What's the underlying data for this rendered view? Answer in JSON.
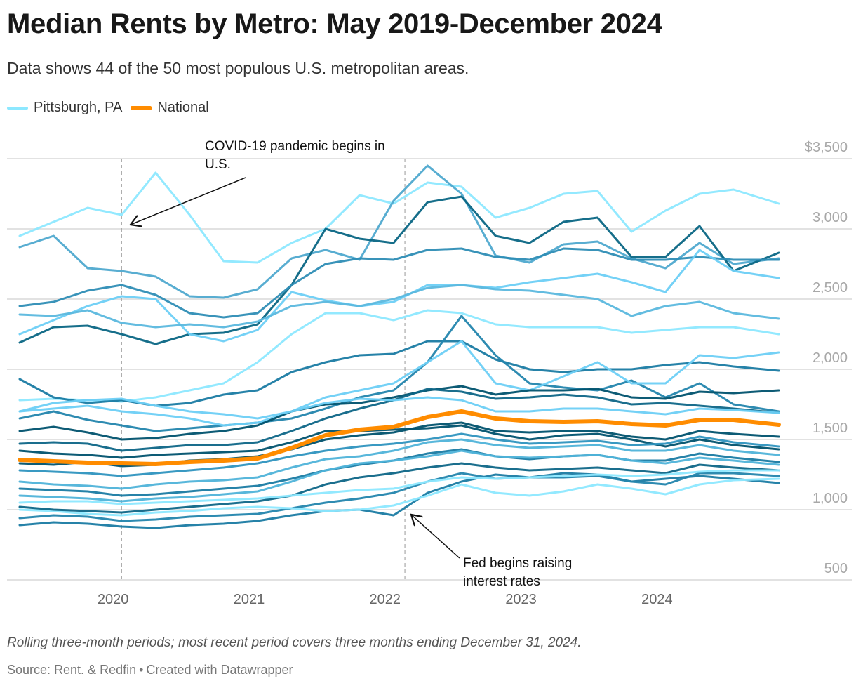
{
  "header": {
    "title": "Median Rents by Metro: May 2019-December 2024",
    "subtitle": "Data shows 44 of the 50 most populous U.S. metropolitan areas."
  },
  "legend": [
    {
      "label": "Pittsburgh, PA",
      "color": "#8de8ff"
    },
    {
      "label": "National",
      "color": "#ff8c00"
    }
  ],
  "footer": {
    "note": "Rolling three-month periods; most recent period covers three months ending December 31, 2024.",
    "source": "Source: Rent. & Redfin",
    "credit": "Created with Datawrapper",
    "separator": "•"
  },
  "chart_data": {
    "type": "line",
    "title": "Median Rents by Metro: May 2019-December 2024",
    "xlabel": "",
    "ylabel": "",
    "x": [
      "2019-05",
      "2019-08",
      "2019-11",
      "2020-02",
      "2020-05",
      "2020-08",
      "2020-11",
      "2021-02",
      "2021-05",
      "2021-08",
      "2021-11",
      "2022-02",
      "2022-05",
      "2022-08",
      "2022-11",
      "2023-02",
      "2023-05",
      "2023-08",
      "2023-11",
      "2024-02",
      "2024-05",
      "2024-08",
      "2024-12"
    ],
    "xlim": [
      "2019-05",
      "2024-12"
    ],
    "x_ticks": [
      {
        "date": "2020-01",
        "label": "2020"
      },
      {
        "date": "2021-01",
        "label": "2021"
      },
      {
        "date": "2022-01",
        "label": "2022"
      },
      {
        "date": "2023-01",
        "label": "2023"
      },
      {
        "date": "2024-01",
        "label": "2024"
      }
    ],
    "ylim": [
      500,
      3500
    ],
    "y_ticks": [
      {
        "value": 3500,
        "label": "$3,500"
      },
      {
        "value": 3000,
        "label": "3,000"
      },
      {
        "value": 2500,
        "label": "2,500"
      },
      {
        "value": 2000,
        "label": "2,000"
      },
      {
        "value": 1500,
        "label": "1,500"
      },
      {
        "value": 1000,
        "label": "1,000"
      },
      {
        "value": 500,
        "label": "500"
      }
    ],
    "grid": true,
    "legend_position": "top-left",
    "annotations": [
      {
        "date": "2020-02",
        "text": "COVID-19 pandemic begins in U.S."
      },
      {
        "date": "2022-03",
        "text": "Fed begins raising interest rates"
      }
    ],
    "series": [
      {
        "color": "#8de8ff",
        "values": [
          2950,
          3050,
          3150,
          3100,
          3400,
          3100,
          2770,
          2760,
          2900,
          3000,
          3240,
          3180,
          3330,
          3300,
          3080,
          3150,
          3250,
          3270,
          2980,
          3130,
          3250,
          3280,
          3180
        ]
      },
      {
        "color": "#4fa9cf",
        "values": [
          2870,
          2950,
          2720,
          2700,
          2660,
          2520,
          2510,
          2570,
          2790,
          2850,
          2780,
          3200,
          3450,
          3250,
          2810,
          2760,
          2890,
          2910,
          2790,
          2720,
          2900,
          2750,
          2790
        ]
      },
      {
        "color": "#0a6684",
        "values": [
          2190,
          2300,
          2310,
          2250,
          2180,
          2250,
          2260,
          2320,
          2600,
          3000,
          2930,
          2900,
          3190,
          3230,
          2950,
          2900,
          3050,
          3080,
          2800,
          2800,
          3020,
          2700,
          2830
        ]
      },
      {
        "color": "#2e8db5",
        "values": [
          2450,
          2480,
          2560,
          2600,
          2530,
          2400,
          2370,
          2400,
          2600,
          2750,
          2790,
          2780,
          2850,
          2860,
          2800,
          2780,
          2860,
          2850,
          2780,
          2780,
          2800,
          2780,
          2780
        ]
      },
      {
        "color": "#6dcff6",
        "values": [
          2250,
          2350,
          2450,
          2520,
          2500,
          2250,
          2200,
          2280,
          2550,
          2490,
          2450,
          2480,
          2600,
          2600,
          2580,
          2620,
          2650,
          2680,
          2620,
          2550,
          2850,
          2700,
          2650
        ]
      },
      {
        "color": "#8de8ff",
        "values": [
          1780,
          1790,
          1780,
          1770,
          1800,
          1850,
          1900,
          2050,
          2250,
          2400,
          2400,
          2350,
          2420,
          2400,
          2320,
          2300,
          2300,
          2300,
          2260,
          2280,
          2300,
          2300,
          2250
        ]
      },
      {
        "color": "#5bb8de",
        "values": [
          2390,
          2380,
          2420,
          2330,
          2300,
          2320,
          2300,
          2340,
          2450,
          2480,
          2450,
          2500,
          2580,
          2600,
          2570,
          2560,
          2530,
          2500,
          2380,
          2450,
          2480,
          2400,
          2360
        ]
      },
      {
        "color": "#1a7ba3",
        "values": [
          1930,
          1800,
          1760,
          1780,
          1740,
          1760,
          1820,
          1850,
          1980,
          2050,
          2100,
          2110,
          2200,
          2200,
          2070,
          2000,
          1980,
          2000,
          2000,
          2030,
          2050,
          2020,
          1990
        ]
      },
      {
        "color": "#2385ad",
        "values": [
          1650,
          1700,
          1640,
          1600,
          1560,
          1580,
          1600,
          1620,
          1650,
          1720,
          1800,
          1850,
          2050,
          2380,
          2100,
          1900,
          1870,
          1850,
          1920,
          1800,
          1900,
          1750,
          1700
        ]
      },
      {
        "color": "#6dcff6",
        "values": [
          1700,
          1720,
          1740,
          1700,
          1680,
          1650,
          1600,
          1620,
          1700,
          1800,
          1850,
          1900,
          2050,
          2200,
          1900,
          1850,
          1950,
          2050,
          1900,
          1900,
          2100,
          2080,
          2120
        ]
      },
      {
        "color": "#00526e",
        "values": [
          1560,
          1590,
          1550,
          1500,
          1510,
          1540,
          1560,
          1600,
          1700,
          1750,
          1760,
          1800,
          1850,
          1880,
          1820,
          1850,
          1850,
          1860,
          1800,
          1790,
          1840,
          1830,
          1850
        ]
      },
      {
        "color": "#0e6687",
        "values": [
          1470,
          1480,
          1470,
          1420,
          1440,
          1460,
          1460,
          1480,
          1560,
          1650,
          1720,
          1780,
          1860,
          1840,
          1790,
          1800,
          1820,
          1800,
          1750,
          1760,
          1740,
          1720,
          1690
        ]
      },
      {
        "color": "#00526e",
        "values": [
          1420,
          1400,
          1390,
          1370,
          1390,
          1400,
          1410,
          1420,
          1480,
          1560,
          1560,
          1570,
          1580,
          1600,
          1540,
          1500,
          1530,
          1540,
          1500,
          1450,
          1500,
          1460,
          1430
        ]
      },
      {
        "color": "#2e93bf",
        "values": [
          1280,
          1270,
          1260,
          1240,
          1260,
          1280,
          1300,
          1330,
          1380,
          1420,
          1450,
          1470,
          1500,
          1540,
          1500,
          1470,
          1480,
          1490,
          1460,
          1470,
          1520,
          1480,
          1450
        ]
      },
      {
        "color": "#4fb3d9",
        "values": [
          1200,
          1180,
          1170,
          1150,
          1180,
          1200,
          1210,
          1230,
          1300,
          1360,
          1380,
          1420,
          1480,
          1500,
          1460,
          1440,
          1450,
          1460,
          1420,
          1420,
          1460,
          1420,
          1390
        ]
      },
      {
        "color": "#1a7ba3",
        "values": [
          1150,
          1140,
          1130,
          1100,
          1110,
          1130,
          1150,
          1170,
          1220,
          1280,
          1320,
          1350,
          1400,
          1430,
          1380,
          1360,
          1380,
          1390,
          1350,
          1350,
          1400,
          1370,
          1340
        ]
      },
      {
        "color": "#1a7ba3",
        "values": [
          890,
          910,
          900,
          880,
          870,
          890,
          900,
          920,
          960,
          990,
          1000,
          960,
          1120,
          1200,
          1250,
          1230,
          1260,
          1250,
          1200,
          1220,
          1240,
          1220,
          1190
        ]
      },
      {
        "color": "#2385ad",
        "values": [
          940,
          960,
          950,
          920,
          930,
          950,
          960,
          970,
          1010,
          1050,
          1080,
          1120,
          1200,
          1260,
          1220,
          1230,
          1230,
          1240,
          1200,
          1180,
          1260,
          1260,
          1240
        ]
      },
      {
        "color": "#8de8ff",
        "values": [
          1000,
          990,
          970,
          960,
          980,
          990,
          1010,
          1020,
          1010,
          990,
          1000,
          1030,
          1100,
          1180,
          1120,
          1100,
          1130,
          1180,
          1150,
          1110,
          1180,
          1210,
          1220
        ]
      },
      {
        "color": "#0e6687",
        "values": [
          1020,
          1000,
          990,
          980,
          1000,
          1020,
          1040,
          1060,
          1100,
          1180,
          1230,
          1260,
          1300,
          1330,
          1300,
          1280,
          1290,
          1300,
          1280,
          1260,
          1320,
          1300,
          1280
        ]
      },
      {
        "color": "#4fb3d9",
        "values": [
          1100,
          1090,
          1080,
          1060,
          1080,
          1090,
          1110,
          1130,
          1200,
          1280,
          1330,
          1350,
          1380,
          1420,
          1380,
          1370,
          1380,
          1390,
          1350,
          1330,
          1370,
          1350,
          1320
        ]
      },
      {
        "color": "#00526e",
        "values": [
          1330,
          1320,
          1340,
          1310,
          1320,
          1350,
          1360,
          1380,
          1430,
          1500,
          1530,
          1550,
          1600,
          1620,
          1560,
          1550,
          1560,
          1560,
          1520,
          1500,
          1560,
          1540,
          1520
        ]
      },
      {
        "color": "#6dcff6",
        "values": [
          1700,
          1760,
          1780,
          1790,
          1740,
          1700,
          1680,
          1650,
          1700,
          1760,
          1790,
          1780,
          1800,
          1780,
          1700,
          1700,
          1720,
          1720,
          1700,
          1680,
          1720,
          1710,
          1690
        ]
      },
      {
        "name": "Pittsburgh, PA",
        "color": "#8de8ff",
        "values": [
          1050,
          1060,
          1060,
          1040,
          1050,
          1060,
          1070,
          1080,
          1100,
          1120,
          1140,
          1150,
          1200,
          1230,
          1220,
          1230,
          1240,
          1250,
          1240,
          1250,
          1270,
          1280,
          1280
        ]
      },
      {
        "name": "National",
        "color": "#ff8c00",
        "highlight": true,
        "values": [
          1355,
          1345,
          1335,
          1330,
          1325,
          1340,
          1350,
          1365,
          1440,
          1530,
          1570,
          1590,
          1660,
          1700,
          1650,
          1630,
          1625,
          1630,
          1610,
          1600,
          1640,
          1640,
          1605
        ]
      }
    ]
  }
}
